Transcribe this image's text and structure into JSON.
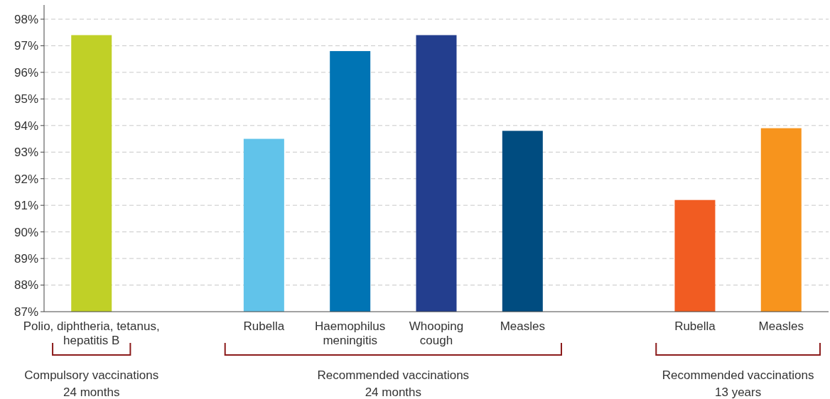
{
  "chart_data": {
    "type": "bar",
    "categories": [
      "Polio, diphtheria, tetanus,\nhepatitis B",
      null,
      "Rubella",
      "Haemophilus\nmeningitis",
      "Whooping\ncough",
      "Measles",
      null,
      "Rubella",
      "Measles"
    ],
    "values": [
      97.4,
      null,
      93.5,
      96.8,
      97.4,
      93.8,
      null,
      91.2,
      93.9
    ],
    "colors": [
      "#c0d027",
      null,
      "#61c3ea",
      "#0074b4",
      "#233e8e",
      "#004c80",
      null,
      "#f15c22",
      "#f7941d"
    ],
    "ylim": [
      87,
      98
    ],
    "yticks": [
      {
        "value": 87,
        "label": "87%"
      },
      {
        "value": 88,
        "label": "88%"
      },
      {
        "value": 89,
        "label": "89%"
      },
      {
        "value": 90,
        "label": "90%"
      },
      {
        "value": 91,
        "label": "91%"
      },
      {
        "value": 92,
        "label": "92%"
      },
      {
        "value": 93,
        "label": "93%"
      },
      {
        "value": 94,
        "label": "94%"
      },
      {
        "value": 95,
        "label": "95%"
      },
      {
        "value": 96,
        "label": "96%"
      },
      {
        "value": 97,
        "label": "97%"
      },
      {
        "value": 98,
        "label": "98%"
      }
    ],
    "grid": "y",
    "annotations": [
      "Compulsory vaccinations\n24 months",
      "Recommended vaccinations\n24 months",
      "Recommended vaccinations\n13 years"
    ]
  }
}
